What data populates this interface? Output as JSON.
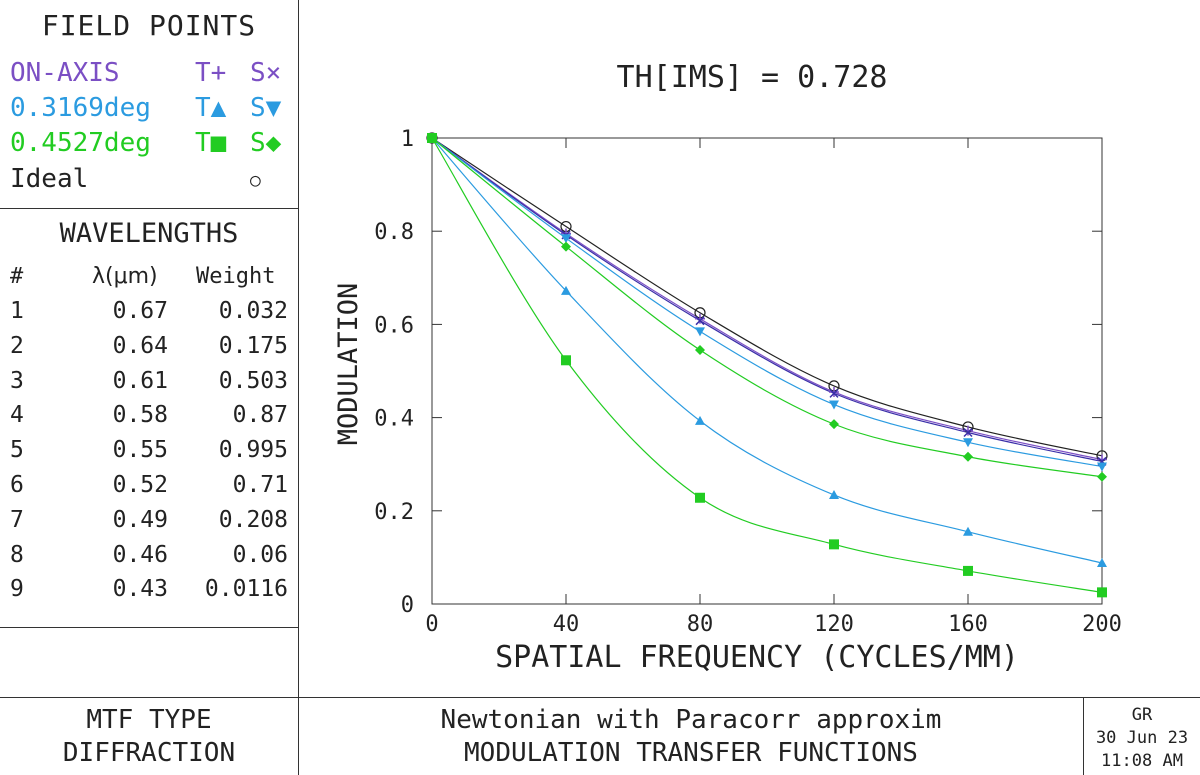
{
  "field_points": {
    "title": "FIELD POINTS",
    "rows": [
      {
        "label": "ON-AXIS",
        "t": "T+",
        "s": "S×",
        "color": "#7b4fc4"
      },
      {
        "label": "0.3169deg",
        "t": "T▲",
        "s": "S▼",
        "color": "#2b9be0"
      },
      {
        "label": "0.4527deg",
        "t": "T■",
        "s": "S◆",
        "color": "#22cc22"
      },
      {
        "label": "Ideal",
        "t": "",
        "s": "○",
        "color": "#222222"
      }
    ]
  },
  "wavelengths": {
    "title": "WAVELENGTHS",
    "headers": [
      "#",
      "λ(μm)",
      "Weight"
    ],
    "rows": [
      [
        "1",
        "0.67",
        "0.032"
      ],
      [
        "2",
        "0.64",
        "0.175"
      ],
      [
        "3",
        "0.61",
        "0.503"
      ],
      [
        "4",
        "0.58",
        "0.87"
      ],
      [
        "5",
        "0.55",
        "0.995"
      ],
      [
        "6",
        "0.52",
        "0.71"
      ],
      [
        "7",
        "0.49",
        "0.208"
      ],
      [
        "8",
        "0.46",
        "0.06"
      ],
      [
        "9",
        "0.43",
        "0.0116"
      ]
    ]
  },
  "footer": {
    "mtf_type_line1": "MTF TYPE",
    "mtf_type_line2": "DIFFRACTION",
    "title_line1": "Newtonian with Paracorr approxim",
    "title_line2": "MODULATION TRANSFER FUNCTIONS",
    "initials": "GR",
    "date": "30 Jun 23",
    "time": "11:08 AM"
  },
  "chart_data": {
    "type": "line",
    "title": "TH[IMS] = 0.728",
    "xlabel": "SPATIAL FREQUENCY (CYCLES/MM)",
    "ylabel": "MODULATION",
    "xlim": [
      0,
      200
    ],
    "ylim": [
      0,
      1
    ],
    "xticks": [
      0,
      40,
      80,
      120,
      160,
      200
    ],
    "yticks": [
      0,
      0.2,
      0.4,
      0.6,
      0.8,
      1
    ],
    "ytick_labels": [
      "0",
      "0.2",
      "0.4",
      "0.6",
      "0.8",
      "1"
    ],
    "x": [
      0,
      40,
      80,
      120,
      160,
      200
    ],
    "series": [
      {
        "name": "Ideal",
        "marker": "circle",
        "color": "#222222",
        "values": [
          1.0,
          0.81,
          0.625,
          0.468,
          0.38,
          0.318
        ]
      },
      {
        "name": "ON-AXIS T",
        "marker": "plus",
        "color": "#7b4fc4",
        "values": [
          1.0,
          0.795,
          0.612,
          0.455,
          0.372,
          0.31
        ]
      },
      {
        "name": "ON-AXIS S",
        "marker": "x",
        "color": "#3a2fa8",
        "values": [
          1.0,
          0.792,
          0.608,
          0.452,
          0.368,
          0.306
        ]
      },
      {
        "name": "0.3169deg T",
        "marker": "triangle-up",
        "color": "#2b9be0",
        "values": [
          1.0,
          0.672,
          0.393,
          0.234,
          0.155,
          0.088
        ]
      },
      {
        "name": "0.3169deg S",
        "marker": "triangle-down",
        "color": "#2b9be0",
        "values": [
          1.0,
          0.785,
          0.585,
          0.428,
          0.347,
          0.295
        ]
      },
      {
        "name": "0.4527deg T",
        "marker": "square",
        "color": "#22cc22",
        "values": [
          1.0,
          0.523,
          0.228,
          0.128,
          0.071,
          0.025
        ]
      },
      {
        "name": "0.4527deg S",
        "marker": "diamond",
        "color": "#22cc22",
        "values": [
          1.0,
          0.767,
          0.545,
          0.386,
          0.316,
          0.273
        ]
      }
    ]
  }
}
